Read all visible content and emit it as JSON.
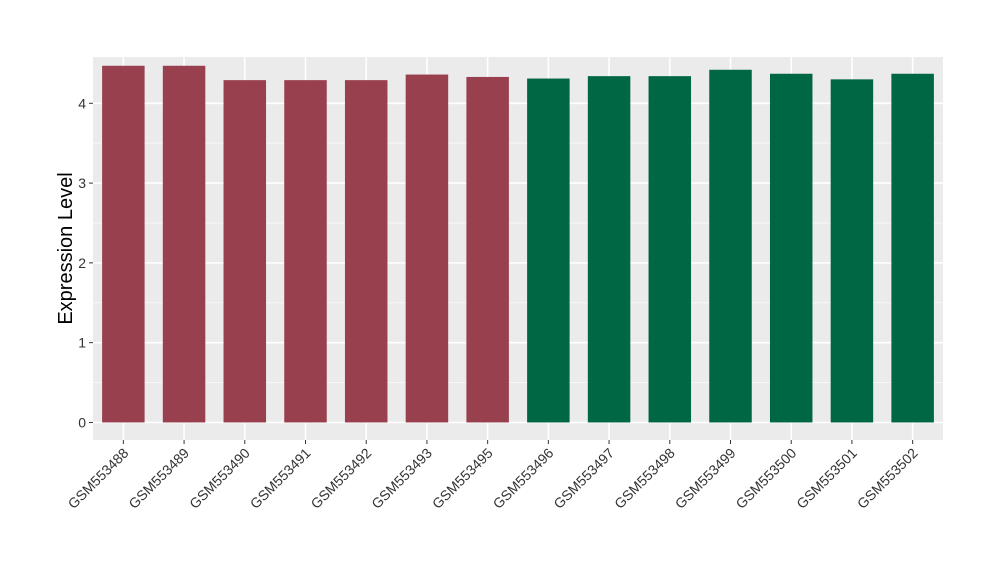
{
  "chart_data": {
    "type": "bar",
    "ylabel": "Expression Level",
    "xlabel": "",
    "ylim": [
      -0.22,
      4.58
    ],
    "yticks": [
      0,
      1,
      2,
      3,
      4
    ],
    "grid": true,
    "background_color": "#ebebeb",
    "group_colors": {
      "group1": "#98404e",
      "group2": "#006744"
    },
    "categories": [
      "GSM553488",
      "GSM553489",
      "GSM553490",
      "GSM553491",
      "GSM553492",
      "GSM553493",
      "GSM553495",
      "GSM553496",
      "GSM553497",
      "GSM553498",
      "GSM553499",
      "GSM553500",
      "GSM553501",
      "GSM553502"
    ],
    "values": [
      4.47,
      4.47,
      4.29,
      4.29,
      4.29,
      4.36,
      4.33,
      4.31,
      4.34,
      4.34,
      4.42,
      4.37,
      4.3,
      4.37
    ],
    "bar_groups": [
      "group1",
      "group1",
      "group1",
      "group1",
      "group1",
      "group1",
      "group1",
      "group2",
      "group2",
      "group2",
      "group2",
      "group2",
      "group2",
      "group2"
    ]
  }
}
